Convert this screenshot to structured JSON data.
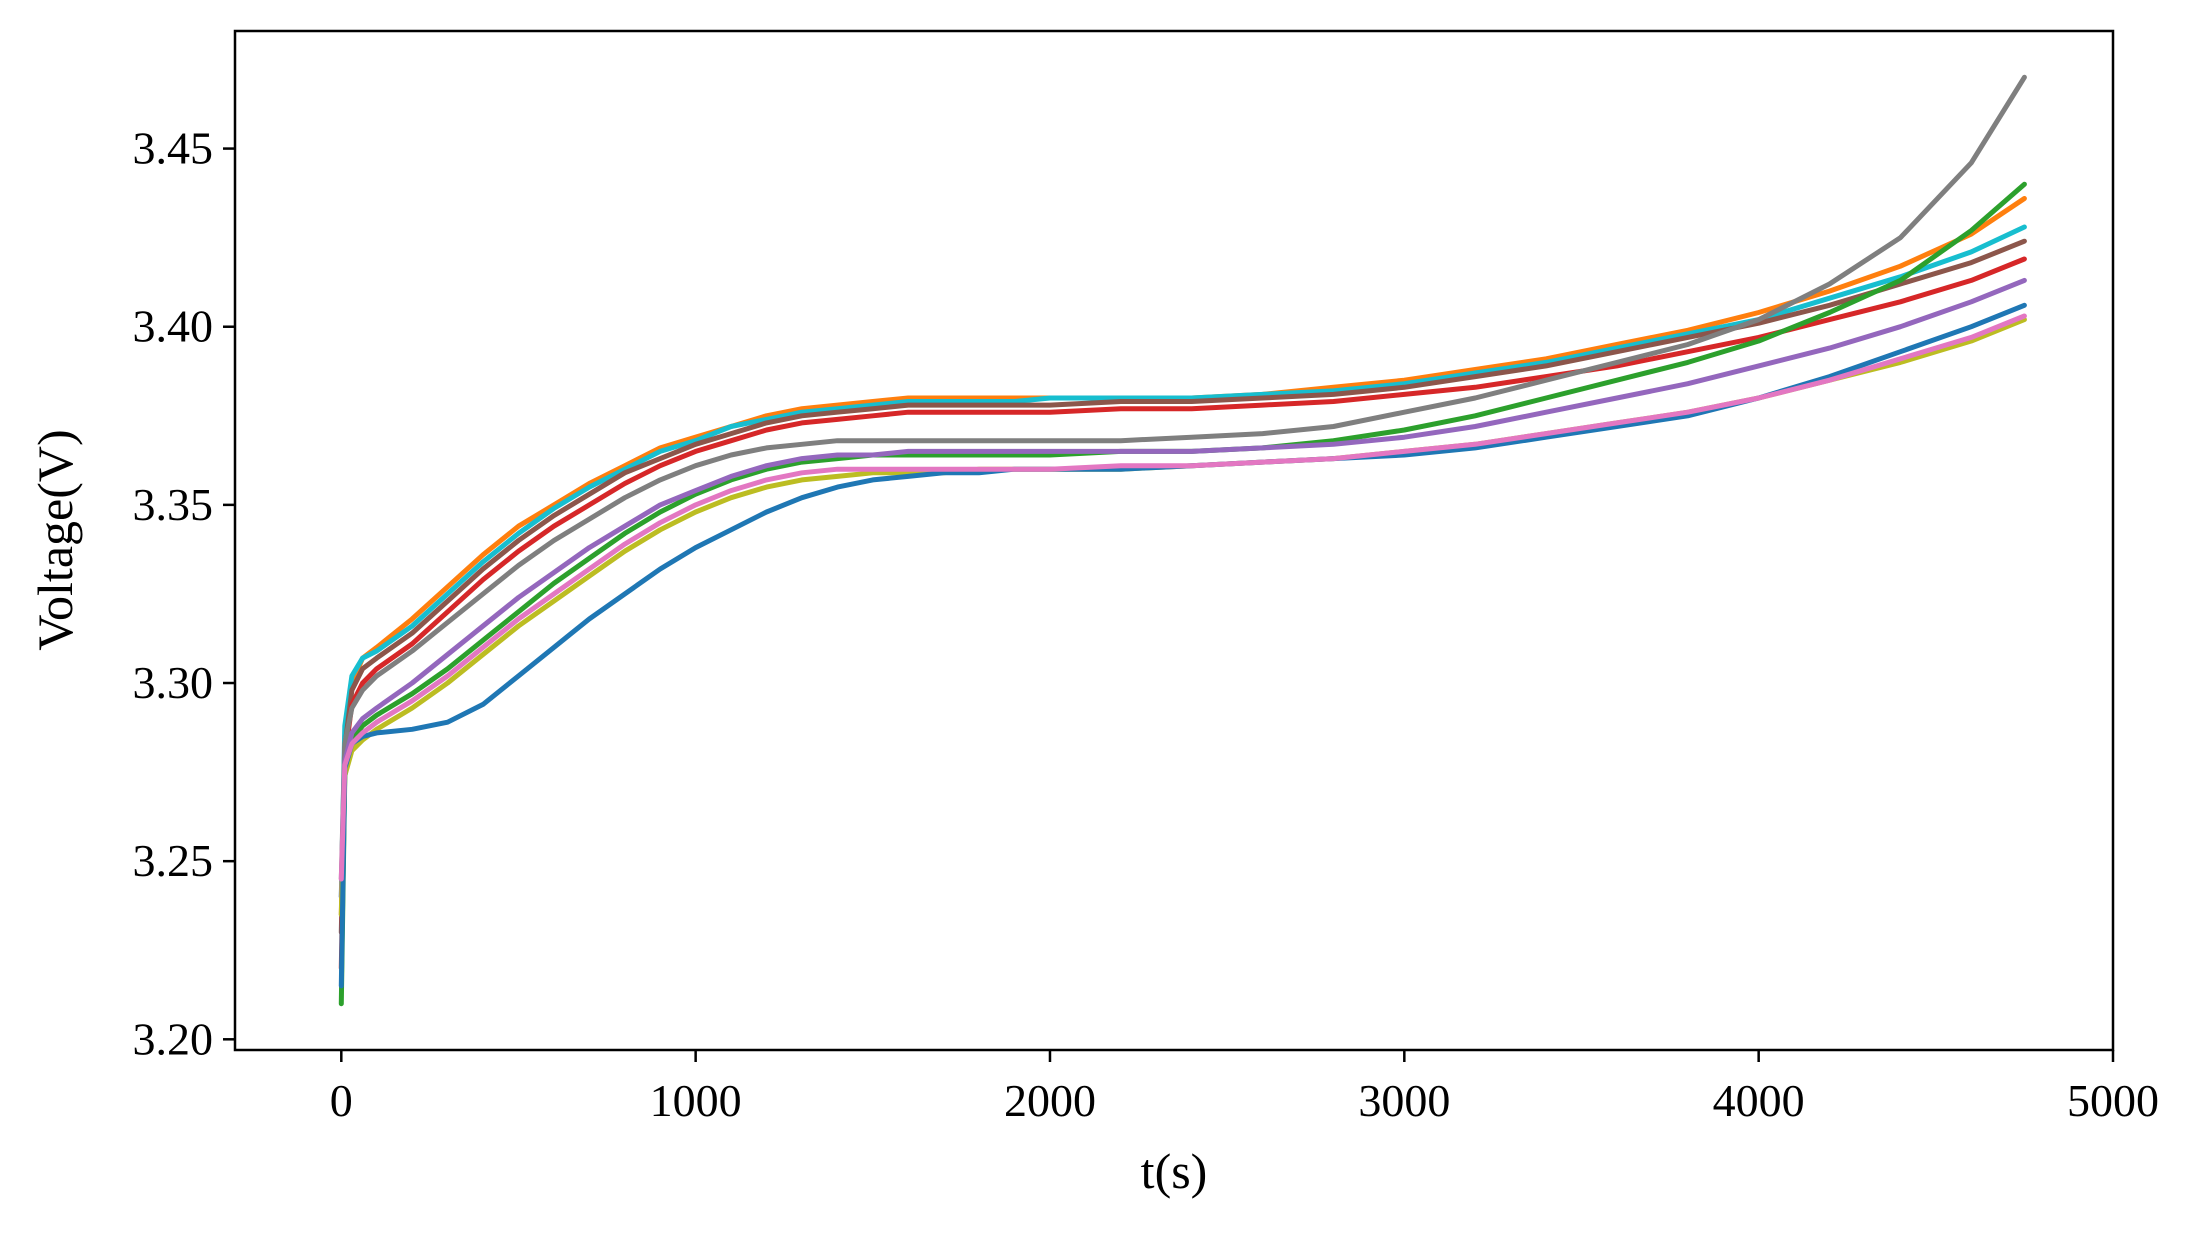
{
  "chart_data": {
    "type": "line",
    "title": "",
    "xlabel": "t(s)",
    "ylabel": "Voltage(V)",
    "xlim": [
      -300,
      5000
    ],
    "ylim": [
      3.197,
      3.483
    ],
    "x_ticks": [
      0,
      1000,
      2000,
      3000,
      4000,
      5000
    ],
    "x_tick_labels": [
      "0",
      "1000",
      "2000",
      "3000",
      "4000",
      "5000"
    ],
    "y_ticks": [
      3.2,
      3.25,
      3.3,
      3.35,
      3.4,
      3.45
    ],
    "y_tick_labels": [
      "3.20",
      "3.25",
      "3.30",
      "3.35",
      "3.40",
      "3.45"
    ],
    "grid": false,
    "legend": "none",
    "x": [
      0,
      10,
      30,
      60,
      100,
      200,
      300,
      400,
      500,
      600,
      700,
      800,
      900,
      1000,
      1100,
      1200,
      1300,
      1400,
      1500,
      1600,
      1700,
      1800,
      1900,
      2000,
      2200,
      2400,
      2600,
      2800,
      3000,
      3200,
      3400,
      3600,
      3800,
      4000,
      4200,
      4400,
      4600,
      4750
    ],
    "series": [
      {
        "color": "#ff7f0e",
        "values": [
          3.235,
          3.285,
          3.3,
          3.307,
          3.31,
          3.318,
          3.327,
          3.336,
          3.344,
          3.35,
          3.356,
          3.361,
          3.366,
          3.369,
          3.372,
          3.375,
          3.377,
          3.378,
          3.379,
          3.38,
          3.38,
          3.38,
          3.38,
          3.38,
          3.38,
          3.38,
          3.381,
          3.383,
          3.385,
          3.388,
          3.391,
          3.395,
          3.399,
          3.404,
          3.41,
          3.417,
          3.426,
          3.436
        ]
      },
      {
        "color": "#17becf",
        "values": [
          3.24,
          3.288,
          3.302,
          3.307,
          3.309,
          3.316,
          3.325,
          3.334,
          3.342,
          3.349,
          3.355,
          3.36,
          3.365,
          3.368,
          3.372,
          3.374,
          3.376,
          3.377,
          3.378,
          3.379,
          3.379,
          3.379,
          3.379,
          3.38,
          3.38,
          3.38,
          3.381,
          3.382,
          3.384,
          3.387,
          3.39,
          3.394,
          3.398,
          3.402,
          3.408,
          3.414,
          3.421,
          3.428
        ]
      },
      {
        "color": "#8c564b",
        "values": [
          3.23,
          3.282,
          3.298,
          3.304,
          3.307,
          3.314,
          3.323,
          3.332,
          3.34,
          3.347,
          3.353,
          3.359,
          3.363,
          3.367,
          3.37,
          3.373,
          3.375,
          3.376,
          3.377,
          3.378,
          3.378,
          3.378,
          3.378,
          3.378,
          3.379,
          3.379,
          3.38,
          3.381,
          3.383,
          3.386,
          3.389,
          3.393,
          3.397,
          3.401,
          3.406,
          3.412,
          3.418,
          3.424
        ]
      },
      {
        "color": "#d62728",
        "values": [
          3.22,
          3.279,
          3.294,
          3.3,
          3.304,
          3.311,
          3.32,
          3.329,
          3.337,
          3.344,
          3.35,
          3.356,
          3.361,
          3.365,
          3.368,
          3.371,
          3.373,
          3.374,
          3.375,
          3.376,
          3.376,
          3.376,
          3.376,
          3.376,
          3.377,
          3.377,
          3.378,
          3.379,
          3.381,
          3.383,
          3.386,
          3.389,
          3.393,
          3.397,
          3.402,
          3.407,
          3.413,
          3.419
        ]
      },
      {
        "color": "#7f7f7f",
        "values": [
          3.245,
          3.283,
          3.293,
          3.298,
          3.302,
          3.309,
          3.317,
          3.325,
          3.333,
          3.34,
          3.346,
          3.352,
          3.357,
          3.361,
          3.364,
          3.366,
          3.367,
          3.368,
          3.368,
          3.368,
          3.368,
          3.368,
          3.368,
          3.368,
          3.368,
          3.369,
          3.37,
          3.372,
          3.376,
          3.38,
          3.385,
          3.39,
          3.395,
          3.402,
          3.412,
          3.425,
          3.446,
          3.47
        ]
      },
      {
        "color": "#2ca02c",
        "values": [
          3.21,
          3.274,
          3.284,
          3.288,
          3.291,
          3.297,
          3.304,
          3.312,
          3.32,
          3.328,
          3.335,
          3.342,
          3.348,
          3.353,
          3.357,
          3.36,
          3.362,
          3.363,
          3.364,
          3.364,
          3.364,
          3.364,
          3.364,
          3.364,
          3.365,
          3.365,
          3.366,
          3.368,
          3.371,
          3.375,
          3.38,
          3.385,
          3.39,
          3.396,
          3.404,
          3.413,
          3.427,
          3.44
        ]
      },
      {
        "color": "#9467bd",
        "values": [
          3.24,
          3.278,
          3.286,
          3.29,
          3.293,
          3.3,
          3.308,
          3.316,
          3.324,
          3.331,
          3.338,
          3.344,
          3.35,
          3.354,
          3.358,
          3.361,
          3.363,
          3.364,
          3.364,
          3.365,
          3.365,
          3.365,
          3.365,
          3.365,
          3.365,
          3.365,
          3.366,
          3.367,
          3.369,
          3.372,
          3.376,
          3.38,
          3.384,
          3.389,
          3.394,
          3.4,
          3.407,
          3.413
        ]
      },
      {
        "color": "#bcbd22",
        "values": [
          3.235,
          3.274,
          3.281,
          3.284,
          3.287,
          3.293,
          3.3,
          3.308,
          3.316,
          3.323,
          3.33,
          3.337,
          3.343,
          3.348,
          3.352,
          3.355,
          3.357,
          3.358,
          3.359,
          3.359,
          3.359,
          3.36,
          3.36,
          3.36,
          3.36,
          3.361,
          3.362,
          3.363,
          3.365,
          3.367,
          3.37,
          3.373,
          3.376,
          3.38,
          3.385,
          3.39,
          3.396,
          3.402
        ]
      },
      {
        "color": "#1f77b4",
        "values": [
          3.215,
          3.276,
          3.283,
          3.285,
          3.286,
          3.287,
          3.289,
          3.294,
          3.302,
          3.31,
          3.318,
          3.325,
          3.332,
          3.338,
          3.343,
          3.348,
          3.352,
          3.355,
          3.357,
          3.358,
          3.359,
          3.359,
          3.36,
          3.36,
          3.36,
          3.361,
          3.362,
          3.363,
          3.364,
          3.366,
          3.369,
          3.372,
          3.375,
          3.38,
          3.386,
          3.393,
          3.4,
          3.406
        ]
      },
      {
        "color": "#e377c2",
        "values": [
          3.245,
          3.277,
          3.283,
          3.286,
          3.289,
          3.295,
          3.302,
          3.31,
          3.318,
          3.325,
          3.332,
          3.339,
          3.345,
          3.35,
          3.354,
          3.357,
          3.359,
          3.36,
          3.36,
          3.36,
          3.36,
          3.36,
          3.36,
          3.36,
          3.361,
          3.361,
          3.362,
          3.363,
          3.365,
          3.367,
          3.37,
          3.373,
          3.376,
          3.38,
          3.385,
          3.391,
          3.397,
          3.403
        ]
      }
    ]
  }
}
